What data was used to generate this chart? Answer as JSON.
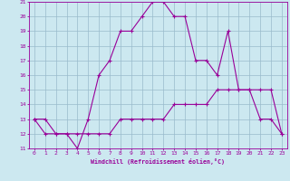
{
  "xlabel": "Windchill (Refroidissement éolien,°C)",
  "x_hours": [
    0,
    1,
    2,
    3,
    4,
    5,
    6,
    7,
    8,
    9,
    10,
    11,
    12,
    13,
    14,
    15,
    16,
    17,
    18,
    19,
    20,
    21,
    22,
    23
  ],
  "temp_line": [
    13,
    13,
    12,
    12,
    11,
    13,
    16,
    17,
    19,
    19,
    20,
    21,
    21,
    20,
    20,
    17,
    17,
    16,
    19,
    15,
    15,
    13,
    13,
    12
  ],
  "windchill_line": [
    13,
    12,
    12,
    12,
    12,
    12,
    12,
    12,
    13,
    13,
    13,
    13,
    13,
    14,
    14,
    14,
    14,
    15,
    15,
    15,
    15,
    15,
    15,
    12
  ],
  "line_color": "#990099",
  "bg_color": "#cce8f0",
  "grid_color": "#99bbcc",
  "ylim": [
    11,
    21
  ],
  "xlim": [
    -0.5,
    23.5
  ],
  "yticks": [
    11,
    12,
    13,
    14,
    15,
    16,
    17,
    18,
    19,
    20,
    21
  ],
  "xticks": [
    0,
    1,
    2,
    3,
    4,
    5,
    6,
    7,
    8,
    9,
    10,
    11,
    12,
    13,
    14,
    15,
    16,
    17,
    18,
    19,
    20,
    21,
    22,
    23
  ]
}
